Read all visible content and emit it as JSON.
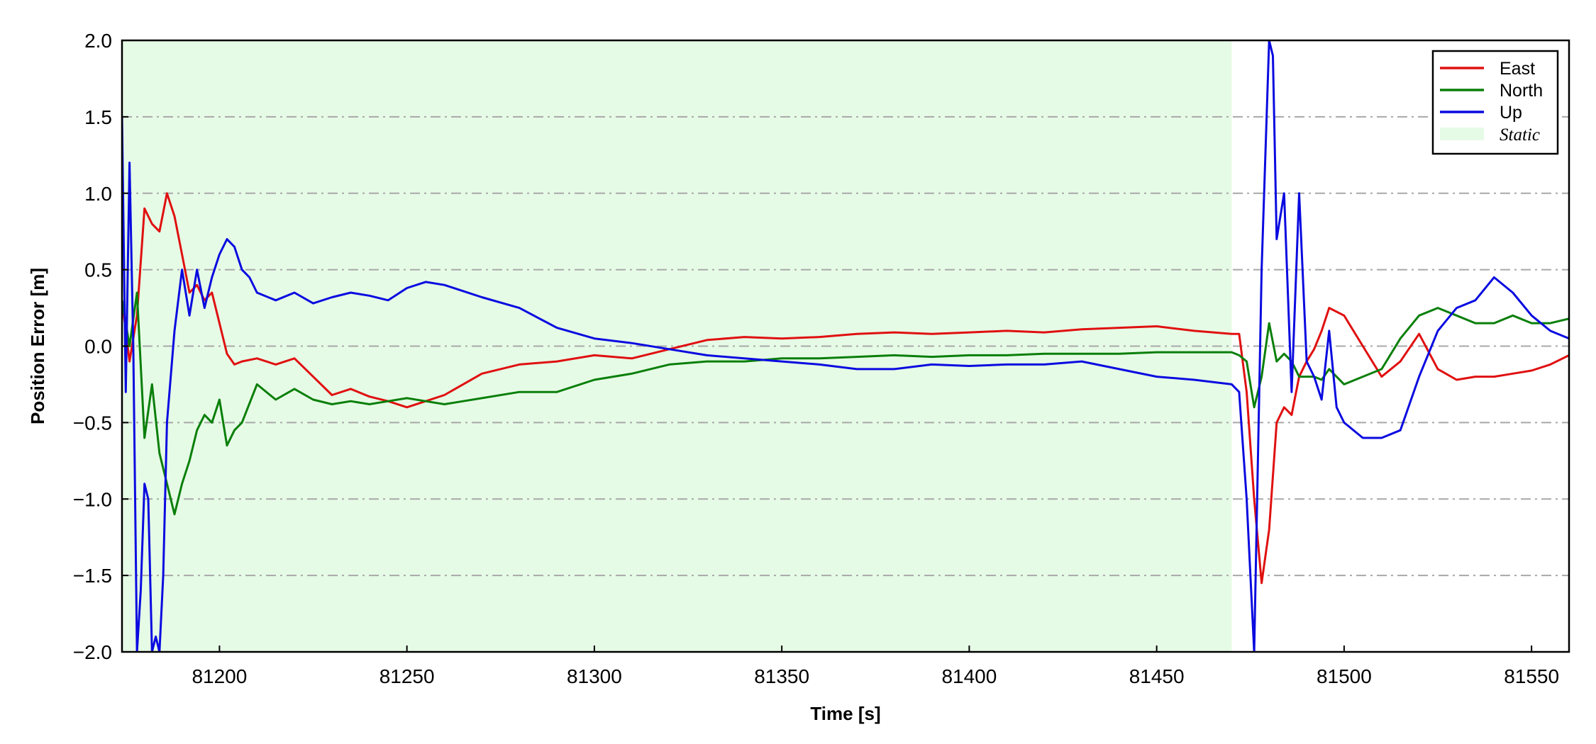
{
  "chart_data": {
    "type": "line",
    "xlabel": "Time [s]",
    "ylabel": "Position Error [m]",
    "xlim": [
      81174,
      81560
    ],
    "ylim": [
      -2.0,
      2.0
    ],
    "xticks": [
      "81200",
      "81250",
      "81300",
      "81350",
      "81400",
      "81450",
      "81500",
      "81550"
    ],
    "yticks": [
      "2.0",
      "1.5",
      "1.0",
      "0.5",
      "0.0",
      "−0.5",
      "−1.0",
      "−1.5",
      "−2.0"
    ],
    "grid": "horizontal dash-dot",
    "legend_position": "top-right",
    "shaded_region": {
      "name": "Static",
      "x_start": 81174,
      "x_end": 81470,
      "color": "#e6fbe6"
    },
    "series": [
      {
        "name": "East",
        "color": "#e01010",
        "x": [
          81174,
          81176,
          81178,
          81180,
          81182,
          81184,
          81186,
          81188,
          81190,
          81192,
          81194,
          81196,
          81198,
          81200,
          81202,
          81204,
          81206,
          81210,
          81215,
          81220,
          81225,
          81230,
          81235,
          81240,
          81245,
          81250,
          81255,
          81260,
          81265,
          81270,
          81280,
          81290,
          81300,
          81310,
          81320,
          81330,
          81340,
          81350,
          81360,
          81370,
          81380,
          81390,
          81400,
          81410,
          81420,
          81430,
          81440,
          81450,
          81460,
          81470,
          81472,
          81474,
          81476,
          81478,
          81480,
          81482,
          81484,
          81486,
          81488,
          81490,
          81492,
          81494,
          81496,
          81500,
          81505,
          81510,
          81515,
          81520,
          81525,
          81530,
          81535,
          81540,
          81545,
          81550,
          81555,
          81560
        ],
        "values": [
          0.3,
          -0.1,
          0.2,
          0.9,
          0.8,
          0.75,
          1.0,
          0.85,
          0.6,
          0.35,
          0.4,
          0.3,
          0.35,
          0.15,
          -0.05,
          -0.12,
          -0.1,
          -0.08,
          -0.12,
          -0.08,
          -0.2,
          -0.32,
          -0.28,
          -0.33,
          -0.36,
          -0.4,
          -0.36,
          -0.32,
          -0.25,
          -0.18,
          -0.12,
          -0.1,
          -0.06,
          -0.08,
          -0.02,
          0.04,
          0.06,
          0.05,
          0.06,
          0.08,
          0.09,
          0.08,
          0.09,
          0.1,
          0.09,
          0.11,
          0.12,
          0.13,
          0.1,
          0.08,
          0.08,
          -0.3,
          -1.0,
          -1.55,
          -1.2,
          -0.5,
          -0.4,
          -0.45,
          -0.2,
          -0.1,
          -0.02,
          0.1,
          0.25,
          0.2,
          0.0,
          -0.2,
          -0.1,
          0.08,
          -0.15,
          -0.22,
          -0.2,
          -0.2,
          -0.18,
          -0.16,
          -0.12,
          -0.06
        ]
      },
      {
        "name": "North",
        "color": "#0a7f0a",
        "x": [
          81174,
          81176,
          81178,
          81180,
          81182,
          81184,
          81186,
          81188,
          81190,
          81192,
          81194,
          81196,
          81198,
          81200,
          81202,
          81204,
          81206,
          81210,
          81215,
          81220,
          81225,
          81230,
          81235,
          81240,
          81245,
          81250,
          81255,
          81260,
          81265,
          81270,
          81280,
          81290,
          81300,
          81310,
          81320,
          81330,
          81340,
          81350,
          81360,
          81370,
          81380,
          81390,
          81400,
          81410,
          81420,
          81430,
          81440,
          81450,
          81460,
          81470,
          81472,
          81474,
          81476,
          81478,
          81480,
          81482,
          81484,
          81486,
          81488,
          81490,
          81492,
          81494,
          81496,
          81500,
          81505,
          81510,
          81515,
          81520,
          81525,
          81530,
          81535,
          81540,
          81545,
          81550,
          81555,
          81560
        ],
        "values": [
          0.3,
          0.0,
          0.35,
          -0.6,
          -0.25,
          -0.7,
          -0.9,
          -1.1,
          -0.9,
          -0.75,
          -0.55,
          -0.45,
          -0.5,
          -0.35,
          -0.65,
          -0.55,
          -0.5,
          -0.25,
          -0.35,
          -0.28,
          -0.35,
          -0.38,
          -0.36,
          -0.38,
          -0.36,
          -0.34,
          -0.36,
          -0.38,
          -0.36,
          -0.34,
          -0.3,
          -0.3,
          -0.22,
          -0.18,
          -0.12,
          -0.1,
          -0.1,
          -0.08,
          -0.08,
          -0.07,
          -0.06,
          -0.07,
          -0.06,
          -0.06,
          -0.05,
          -0.05,
          -0.05,
          -0.04,
          -0.04,
          -0.04,
          -0.06,
          -0.1,
          -0.4,
          -0.2,
          0.15,
          -0.1,
          -0.05,
          -0.1,
          -0.2,
          -0.2,
          -0.2,
          -0.22,
          -0.15,
          -0.25,
          -0.2,
          -0.15,
          0.05,
          0.2,
          0.25,
          0.2,
          0.15,
          0.15,
          0.2,
          0.15,
          0.15,
          0.18
        ]
      },
      {
        "name": "Up",
        "color": "#0a0ae0",
        "x": [
          81174,
          81175,
          81176,
          81177,
          81178,
          81179,
          81180,
          81181,
          81182,
          81183,
          81184,
          81185,
          81186,
          81187,
          81188,
          81189,
          81190,
          81192,
          81194,
          81196,
          81198,
          81200,
          81202,
          81204,
          81206,
          81208,
          81210,
          81215,
          81220,
          81225,
          81230,
          81235,
          81240,
          81245,
          81250,
          81255,
          81260,
          81265,
          81270,
          81280,
          81290,
          81300,
          81310,
          81320,
          81330,
          81340,
          81350,
          81360,
          81370,
          81380,
          81390,
          81400,
          81410,
          81420,
          81430,
          81440,
          81450,
          81460,
          81470,
          81472,
          81474,
          81476,
          81478,
          81480,
          81481,
          81482,
          81484,
          81486,
          81488,
          81490,
          81492,
          81494,
          81496,
          81498,
          81500,
          81505,
          81510,
          81515,
          81520,
          81525,
          81530,
          81535,
          81540,
          81545,
          81550,
          81555,
          81560
        ],
        "values": [
          1.5,
          -0.3,
          1.2,
          0.0,
          -2.0,
          -1.6,
          -0.9,
          -1.0,
          -2.0,
          -1.9,
          -2.0,
          -1.5,
          -0.5,
          -0.2,
          0.1,
          0.3,
          0.5,
          0.2,
          0.5,
          0.25,
          0.45,
          0.6,
          0.7,
          0.65,
          0.5,
          0.45,
          0.35,
          0.3,
          0.35,
          0.28,
          0.32,
          0.35,
          0.33,
          0.3,
          0.38,
          0.42,
          0.4,
          0.36,
          0.32,
          0.25,
          0.12,
          0.05,
          0.02,
          -0.02,
          -0.06,
          -0.08,
          -0.1,
          -0.12,
          -0.15,
          -0.15,
          -0.12,
          -0.13,
          -0.12,
          -0.12,
          -0.1,
          -0.15,
          -0.2,
          -0.22,
          -0.25,
          -0.3,
          -1.0,
          -2.0,
          0.5,
          2.0,
          1.9,
          0.7,
          1.0,
          -0.3,
          1.0,
          -0.1,
          -0.2,
          -0.35,
          0.1,
          -0.4,
          -0.5,
          -0.6,
          -0.6,
          -0.55,
          -0.2,
          0.1,
          0.25,
          0.3,
          0.45,
          0.35,
          0.2,
          0.1,
          0.05
        ]
      }
    ],
    "legend": [
      "East",
      "North",
      "Up",
      "Static"
    ]
  }
}
